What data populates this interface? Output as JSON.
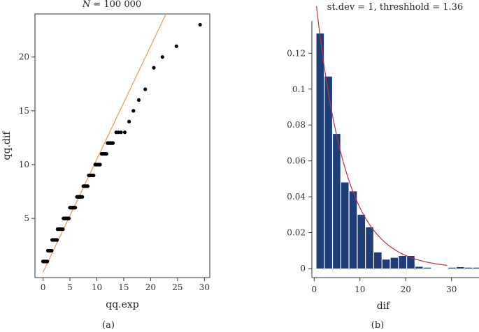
{
  "chart_data": [
    {
      "type": "scatter",
      "title": "N = 100 000",
      "title_parts": {
        "var": "N",
        "rest": " = 100 000"
      },
      "xlabel": "qq.exp",
      "ylabel": "qq.dif",
      "xlim": [
        -1.5,
        31
      ],
      "ylim": [
        -0.5,
        24
      ],
      "xticks": [
        0,
        5,
        10,
        15,
        20,
        25,
        30
      ],
      "yticks": [
        5,
        10,
        15,
        20
      ],
      "panel_label": "(a)",
      "reference_line": {
        "intercept": 0,
        "slope": 1.05,
        "color": "#e8a060"
      },
      "point_color": "#000000",
      "steps": [
        {
          "y": 1,
          "x_from": 0.0,
          "x_to": 0.8
        },
        {
          "y": 2,
          "x_from": 0.9,
          "x_to": 1.6
        },
        {
          "y": 3,
          "x_from": 1.7,
          "x_to": 2.6
        },
        {
          "y": 4,
          "x_from": 2.7,
          "x_to": 3.7
        },
        {
          "y": 5,
          "x_from": 3.8,
          "x_to": 4.8
        },
        {
          "y": 6,
          "x_from": 5.0,
          "x_to": 6.0
        },
        {
          "y": 7,
          "x_from": 6.3,
          "x_to": 7.3
        },
        {
          "y": 8,
          "x_from": 7.5,
          "x_to": 8.3
        },
        {
          "y": 9,
          "x_from": 8.5,
          "x_to": 9.4
        },
        {
          "y": 10,
          "x_from": 9.7,
          "x_to": 10.6
        },
        {
          "y": 11,
          "x_from": 10.9,
          "x_to": 11.8
        },
        {
          "y": 12,
          "x_from": 12.0,
          "x_to": 13.0
        }
      ],
      "points": [
        {
          "x": 13.6,
          "y": 13
        },
        {
          "x": 14.0,
          "y": 13
        },
        {
          "x": 14.5,
          "y": 13
        },
        {
          "x": 15.2,
          "y": 13
        },
        {
          "x": 16.0,
          "y": 14
        },
        {
          "x": 16.8,
          "y": 15
        },
        {
          "x": 17.8,
          "y": 16
        },
        {
          "x": 19.0,
          "y": 17
        },
        {
          "x": 20.6,
          "y": 19
        },
        {
          "x": 22.2,
          "y": 20
        },
        {
          "x": 24.8,
          "y": 21
        },
        {
          "x": 29.2,
          "y": 23
        }
      ]
    },
    {
      "type": "bar",
      "title": "st.dev = 1, threshhold = 1.36",
      "xlabel": "dif",
      "ylabel": "",
      "xlim": [
        -0.5,
        36
      ],
      "ylim": [
        0,
        0.138
      ],
      "xticks": [
        0,
        10,
        20,
        30
      ],
      "yticks": [
        0,
        0.02,
        0.04,
        0.06,
        0.08,
        0.1,
        0.12
      ],
      "panel_label": "(b)",
      "bar_color": "#1f3e78",
      "curve_color": "#c0303a",
      "curve": {
        "a": 0.158,
        "rate": 0.154,
        "x_from": 0.5,
        "x_to": 29.0
      },
      "bin_width": 1.8,
      "bins": [
        {
          "x": 0.5,
          "value": 0.131
        },
        {
          "x": 2.3,
          "value": 0.107
        },
        {
          "x": 4.1,
          "value": 0.075
        },
        {
          "x": 5.9,
          "value": 0.048
        },
        {
          "x": 7.7,
          "value": 0.043
        },
        {
          "x": 9.5,
          "value": 0.03
        },
        {
          "x": 11.3,
          "value": 0.023
        },
        {
          "x": 13.1,
          "value": 0.009
        },
        {
          "x": 14.9,
          "value": 0.005
        },
        {
          "x": 16.7,
          "value": 0.006
        },
        {
          "x": 18.5,
          "value": 0.007
        },
        {
          "x": 20.3,
          "value": 0.007
        },
        {
          "x": 22.1,
          "value": 0.001
        },
        {
          "x": 23.9,
          "value": 0.0005
        },
        {
          "x": 29.3,
          "value": 0.0005
        },
        {
          "x": 31.1,
          "value": 0.0008
        },
        {
          "x": 32.9,
          "value": 0.0005
        },
        {
          "x": 34.7,
          "value": 0.0005
        }
      ]
    }
  ]
}
